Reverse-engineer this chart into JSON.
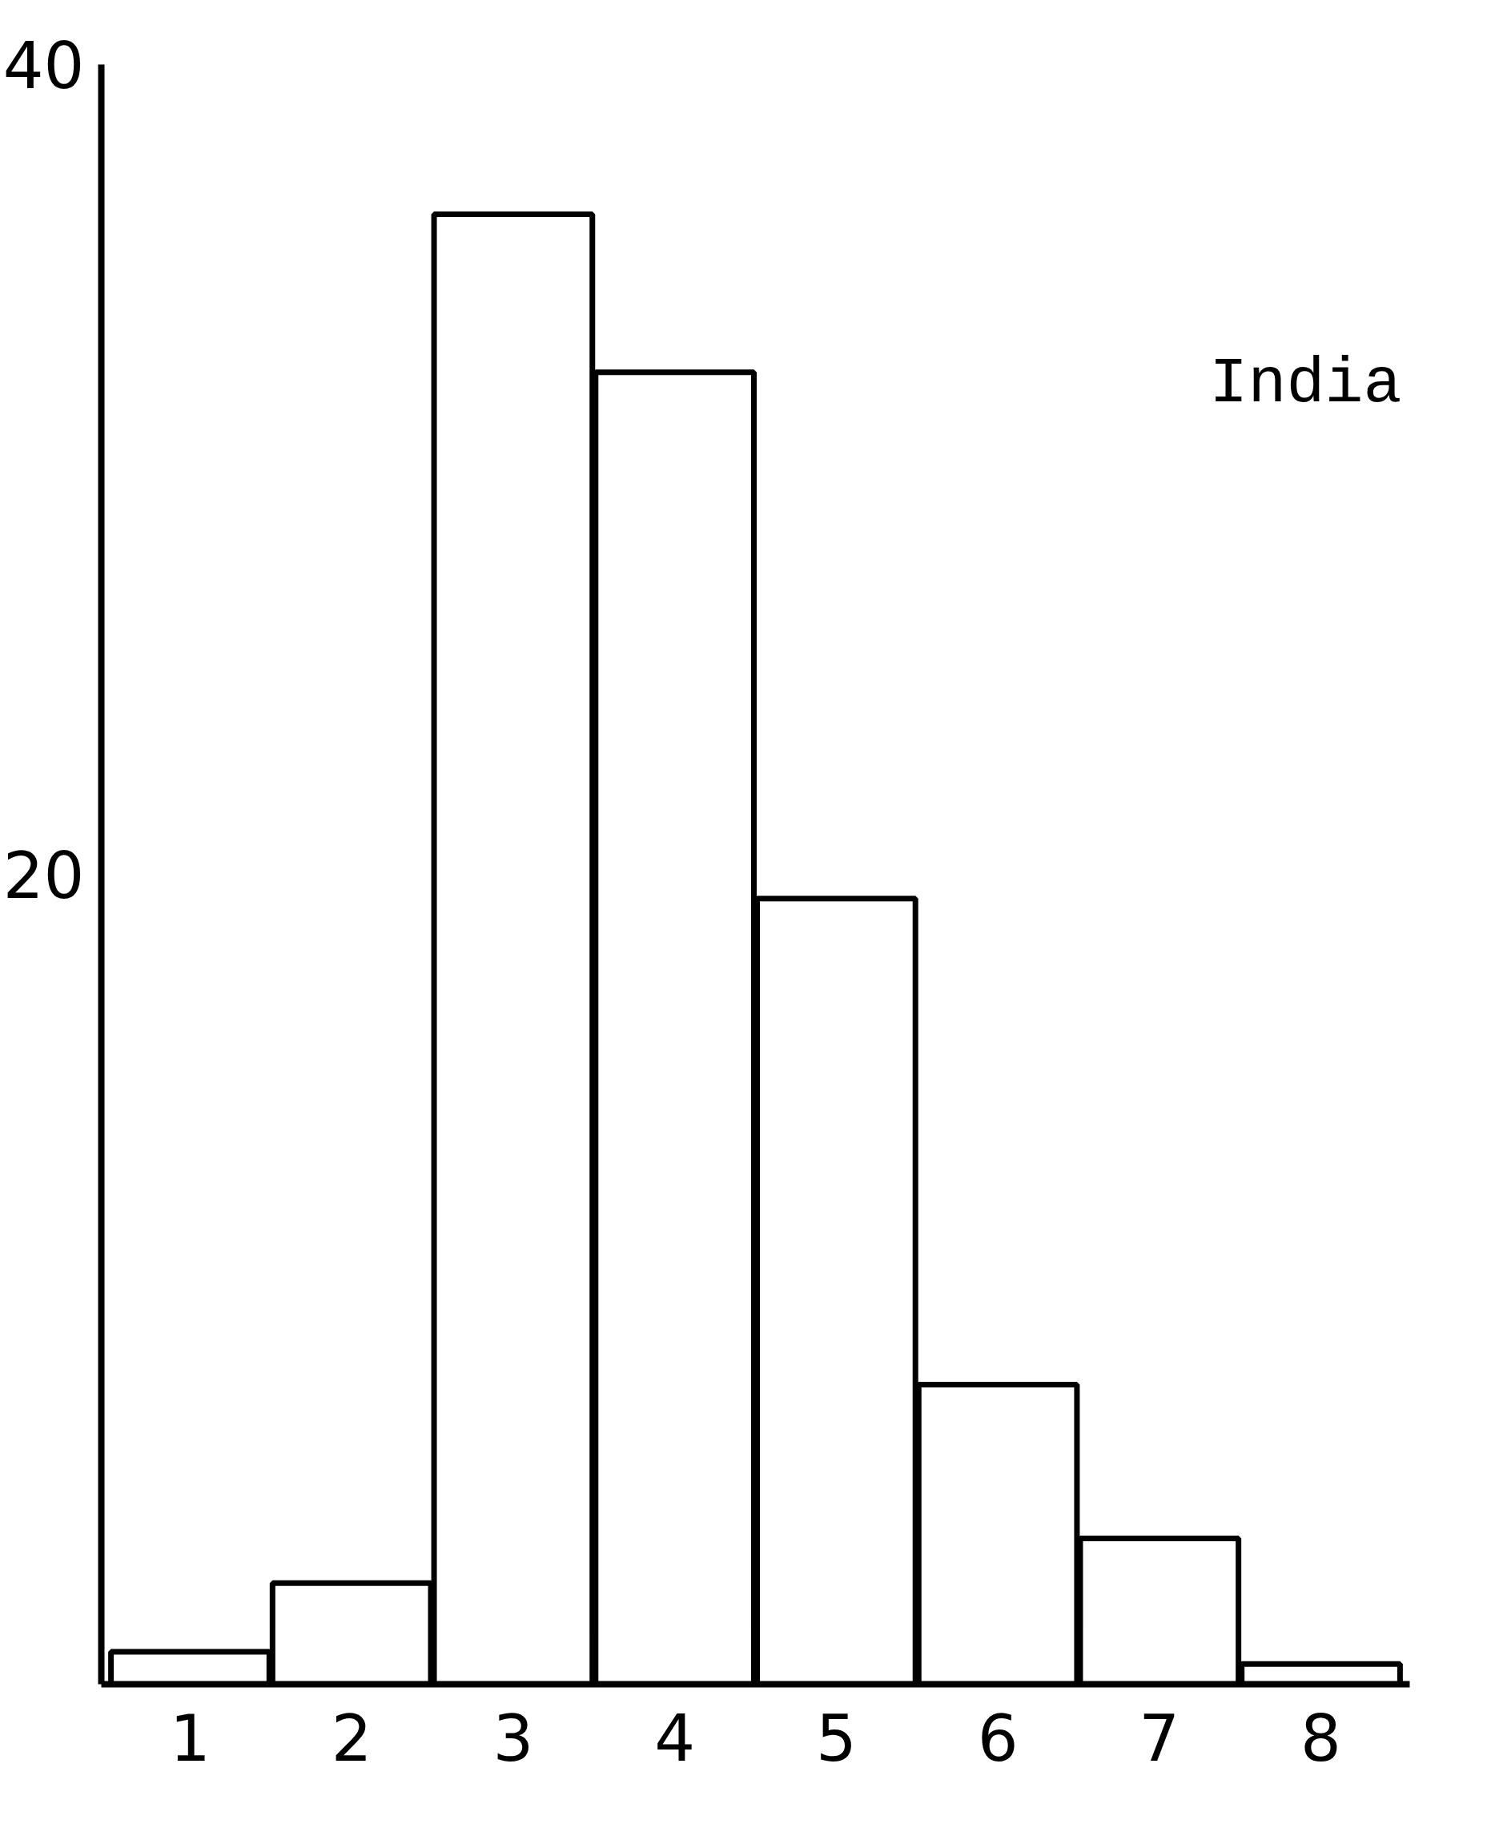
{
  "chart_data": {
    "type": "bar",
    "categories": [
      "1",
      "2",
      "3",
      "4",
      "5",
      "6",
      "7",
      "8"
    ],
    "values": [
      0.8,
      2.5,
      36.3,
      32.4,
      19.4,
      7.4,
      3.6,
      0.5
    ],
    "color": "#ffffff",
    "ylim": [
      0,
      40
    ],
    "yticks": [
      20,
      40
    ],
    "grid": false,
    "annotations": [
      "India"
    ]
  }
}
